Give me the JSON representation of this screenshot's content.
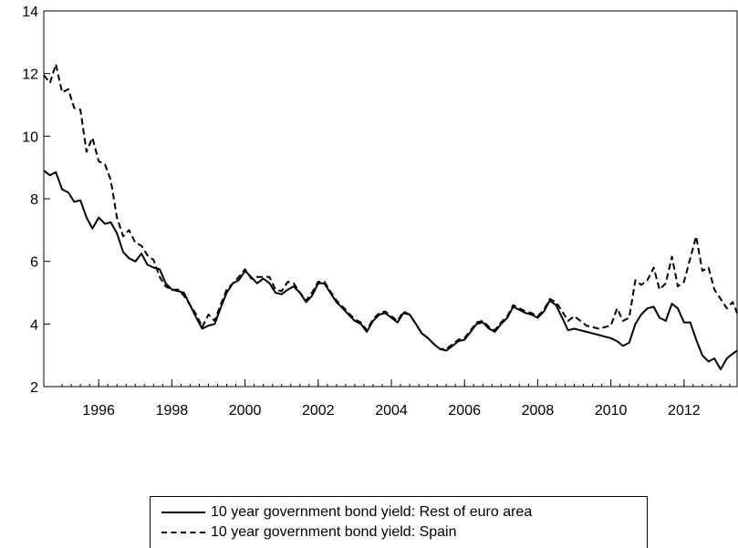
{
  "chart_data": {
    "type": "line",
    "title": "",
    "xlabel": "",
    "ylabel": "",
    "xlim": [
      1994.5,
      2013.45
    ],
    "ylim": [
      2,
      14
    ],
    "yticks": [
      2,
      4,
      6,
      8,
      10,
      12,
      14
    ],
    "xticks": [
      1996,
      1998,
      2000,
      2002,
      2004,
      2006,
      2008,
      2010,
      2012
    ],
    "ytick_labels": [
      "2",
      "4",
      "6",
      "8",
      "10",
      "12",
      "14"
    ],
    "xtick_labels": [
      "1996",
      "1998",
      "2000",
      "2002",
      "2004",
      "2006",
      "2008",
      "2010",
      "2012"
    ],
    "grid": false,
    "legend_position": "bottom-center",
    "series": [
      {
        "name": "10 year government bond yield: Rest of euro area",
        "style": "solid",
        "color": "#000000",
        "x": [
          1994.5,
          1994.67,
          1994.83,
          1995.0,
          1995.17,
          1995.33,
          1995.5,
          1995.67,
          1995.83,
          1996.0,
          1996.17,
          1996.33,
          1996.5,
          1996.67,
          1996.83,
          1997.0,
          1997.17,
          1997.33,
          1997.5,
          1997.67,
          1997.83,
          1998.0,
          1998.17,
          1998.33,
          1998.5,
          1998.67,
          1998.83,
          1999.0,
          1999.17,
          1999.33,
          1999.5,
          1999.67,
          1999.83,
          2000.0,
          2000.17,
          2000.33,
          2000.5,
          2000.67,
          2000.83,
          2001.0,
          2001.17,
          2001.33,
          2001.5,
          2001.67,
          2001.83,
          2002.0,
          2002.17,
          2002.33,
          2002.5,
          2002.67,
          2002.83,
          2003.0,
          2003.17,
          2003.33,
          2003.5,
          2003.67,
          2003.83,
          2004.0,
          2004.17,
          2004.33,
          2004.5,
          2004.67,
          2004.83,
          2005.0,
          2005.17,
          2005.33,
          2005.5,
          2005.67,
          2005.83,
          2006.0,
          2006.17,
          2006.33,
          2006.5,
          2006.67,
          2006.83,
          2007.0,
          2007.17,
          2007.33,
          2007.5,
          2007.67,
          2007.83,
          2008.0,
          2008.17,
          2008.33,
          2008.5,
          2008.67,
          2008.83,
          2009.0,
          2009.17,
          2009.33,
          2009.5,
          2009.67,
          2009.83,
          2010.0,
          2010.17,
          2010.33,
          2010.5,
          2010.67,
          2010.83,
          2011.0,
          2011.17,
          2011.33,
          2011.5,
          2011.67,
          2011.83,
          2012.0,
          2012.17,
          2012.33,
          2012.5,
          2012.67,
          2012.83,
          2013.0,
          2013.17,
          2013.33,
          2013.45
        ],
        "y": [
          8.9,
          8.75,
          8.85,
          8.3,
          8.2,
          7.9,
          7.95,
          7.4,
          7.05,
          7.4,
          7.2,
          7.25,
          6.9,
          6.3,
          6.1,
          6.0,
          6.25,
          5.9,
          5.8,
          5.75,
          5.3,
          5.1,
          5.05,
          5.0,
          4.6,
          4.2,
          3.85,
          3.95,
          4.0,
          4.5,
          5.0,
          5.3,
          5.4,
          5.7,
          5.5,
          5.3,
          5.45,
          5.3,
          5.0,
          4.95,
          5.1,
          5.2,
          5.0,
          4.7,
          4.9,
          5.3,
          5.3,
          5.0,
          4.7,
          4.5,
          4.3,
          4.1,
          4.0,
          3.75,
          4.1,
          4.3,
          4.35,
          4.2,
          4.05,
          4.35,
          4.3,
          4.0,
          3.7,
          3.55,
          3.35,
          3.2,
          3.15,
          3.3,
          3.45,
          3.5,
          3.75,
          4.0,
          4.05,
          3.85,
          3.75,
          4.0,
          4.2,
          4.55,
          4.45,
          4.35,
          4.3,
          4.2,
          4.4,
          4.75,
          4.6,
          4.2,
          3.8,
          3.85,
          3.8,
          3.75,
          3.7,
          3.65,
          3.6,
          3.55,
          3.45,
          3.3,
          3.4,
          4.0,
          4.3,
          4.5,
          4.55,
          4.2,
          4.1,
          4.65,
          4.5,
          4.05,
          4.05,
          3.5,
          3.0,
          2.8,
          2.9,
          2.55,
          2.9,
          3.05,
          3.15
        ]
      },
      {
        "name": "10 year government bond yield: Spain",
        "style": "dashed",
        "color": "#000000",
        "x": [
          1994.5,
          1994.67,
          1994.83,
          1995.0,
          1995.17,
          1995.33,
          1995.5,
          1995.67,
          1995.83,
          1996.0,
          1996.17,
          1996.33,
          1996.5,
          1996.67,
          1996.83,
          1997.0,
          1997.17,
          1997.33,
          1997.5,
          1997.67,
          1997.83,
          1998.0,
          1998.17,
          1998.33,
          1998.5,
          1998.67,
          1998.83,
          1999.0,
          1999.17,
          1999.33,
          1999.5,
          1999.67,
          1999.83,
          2000.0,
          2000.17,
          2000.33,
          2000.5,
          2000.67,
          2000.83,
          2001.0,
          2001.17,
          2001.33,
          2001.5,
          2001.67,
          2001.83,
          2002.0,
          2002.17,
          2002.33,
          2002.5,
          2002.67,
          2002.83,
          2003.0,
          2003.17,
          2003.33,
          2003.5,
          2003.67,
          2003.83,
          2004.0,
          2004.17,
          2004.33,
          2004.5,
          2004.67,
          2004.83,
          2005.0,
          2005.17,
          2005.33,
          2005.5,
          2005.67,
          2005.83,
          2006.0,
          2006.17,
          2006.33,
          2006.5,
          2006.67,
          2006.83,
          2007.0,
          2007.17,
          2007.33,
          2007.5,
          2007.67,
          2007.83,
          2008.0,
          2008.17,
          2008.33,
          2008.5,
          2008.67,
          2008.83,
          2009.0,
          2009.17,
          2009.33,
          2009.5,
          2009.67,
          2009.83,
          2010.0,
          2010.17,
          2010.33,
          2010.5,
          2010.67,
          2010.83,
          2011.0,
          2011.17,
          2011.33,
          2011.5,
          2011.67,
          2011.83,
          2012.0,
          2012.17,
          2012.33,
          2012.5,
          2012.67,
          2012.83,
          2013.0,
          2013.17,
          2013.33,
          2013.45
        ],
        "y": [
          11.95,
          11.7,
          12.3,
          11.4,
          11.5,
          10.9,
          10.85,
          9.5,
          9.95,
          9.2,
          9.1,
          8.6,
          7.4,
          6.8,
          7.0,
          6.6,
          6.5,
          6.2,
          6.05,
          5.5,
          5.2,
          5.1,
          5.1,
          4.9,
          4.6,
          4.3,
          3.9,
          4.3,
          4.1,
          4.6,
          5.1,
          5.3,
          5.5,
          5.75,
          5.45,
          5.5,
          5.5,
          5.5,
          5.1,
          5.05,
          5.35,
          5.3,
          5.0,
          4.75,
          5.0,
          5.35,
          5.35,
          5.05,
          4.75,
          4.55,
          4.35,
          4.15,
          4.05,
          3.8,
          4.15,
          4.35,
          4.4,
          4.25,
          4.1,
          4.4,
          4.3,
          4.0,
          3.7,
          3.55,
          3.35,
          3.2,
          3.2,
          3.35,
          3.5,
          3.55,
          3.8,
          4.05,
          4.1,
          3.9,
          3.8,
          4.05,
          4.25,
          4.6,
          4.5,
          4.4,
          4.35,
          4.25,
          4.45,
          4.8,
          4.7,
          4.4,
          4.1,
          4.25,
          4.1,
          3.95,
          3.9,
          3.85,
          3.9,
          3.95,
          4.5,
          4.1,
          4.2,
          5.4,
          5.25,
          5.4,
          5.8,
          5.1,
          5.3,
          6.15,
          5.2,
          5.35,
          6.1,
          6.8,
          5.7,
          5.8,
          5.1,
          4.8,
          4.5,
          4.7,
          4.35
        ]
      }
    ]
  }
}
